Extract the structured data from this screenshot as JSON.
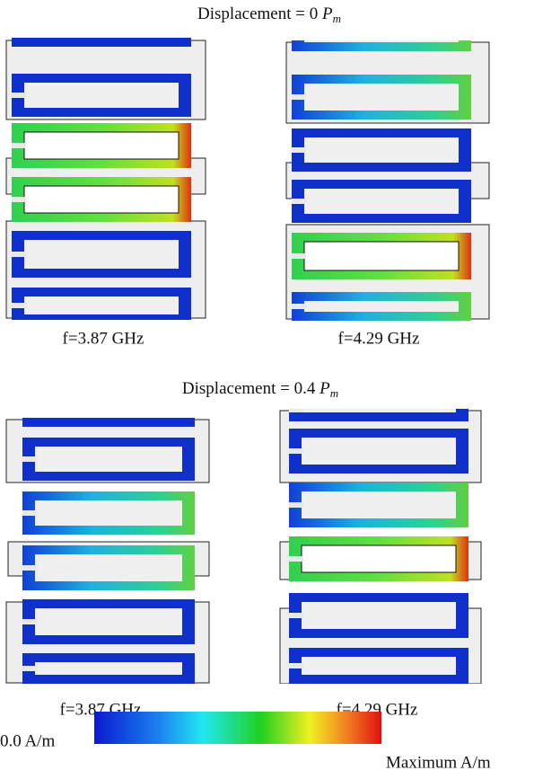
{
  "figure": {
    "rows": [
      {
        "title": {
          "text": "Displacement  = 0 ",
          "symbol": "P",
          "subscript": "m"
        },
        "panels": [
          {
            "caption": "f=3.87 GHz"
          },
          {
            "caption": "f=4.29 GHz"
          }
        ]
      },
      {
        "title": {
          "text": "Displacement  = 0.4 ",
          "symbol": "P",
          "subscript": "m"
        },
        "panels": [
          {
            "caption": "f=3.87 GHz"
          },
          {
            "caption": "f=4.29 GHz"
          }
        ]
      }
    ],
    "colorbar": {
      "min_label": "0.0 A/m",
      "max_label": "Maximum A/m"
    }
  }
}
